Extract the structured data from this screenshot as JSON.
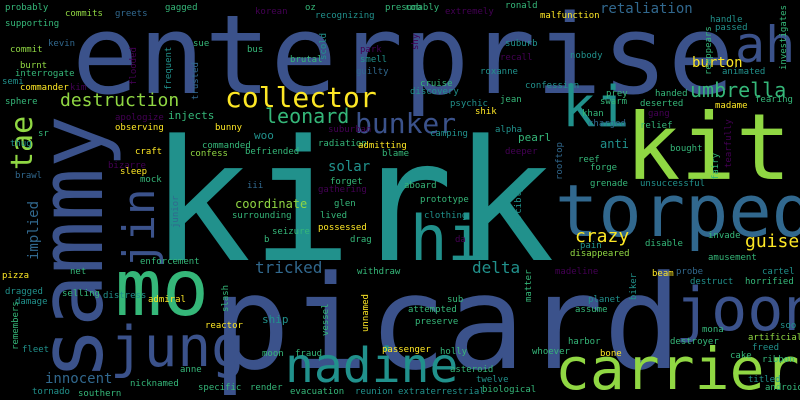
{
  "background": "#000000",
  "palette": {
    "purple": "#440154",
    "indigo": "#3b528b",
    "blue": "#31688e",
    "teal": "#21918c",
    "green": "#35b779",
    "lime": "#90d743",
    "yellow": "#fde725"
  },
  "words": [
    "kirk",
    "picard",
    "enterprise",
    "sammy",
    "kit",
    "torpedo",
    "mo",
    "jung",
    "carrier",
    "nadine",
    "ki",
    "joon",
    "ah",
    "hi",
    "collector",
    "tae",
    "jin",
    "bunker",
    "leonard",
    "destruction",
    "umbrella",
    "crazy",
    "tricked",
    "delta",
    "guise",
    "innocent",
    "implied",
    "retaliation",
    "burton",
    "solar",
    "coordinate",
    "supporting",
    "commits",
    "greets",
    "gagged",
    "korean",
    "oz",
    "recognizing",
    "presumably",
    "extremely",
    "ronald",
    "malfunction",
    "handle",
    "passed",
    "investigates",
    "reappears",
    "animated",
    "probably",
    "kevin",
    "commit",
    "burnt",
    "interrogate",
    "commander",
    "semi",
    "thug",
    "sphere",
    "sr",
    "kim",
    "flooded",
    "frequent",
    "trusted",
    "sue",
    "bus",
    "brutal",
    "scold",
    "park",
    "shy",
    "smell",
    "guilty",
    "suburb",
    "recall",
    "roxanne",
    "nobody",
    "cruise",
    "discovery",
    "confession",
    "psychic",
    "jean",
    "shik",
    "prey",
    "handed",
    "deserted",
    "madame",
    "fearing",
    "khan",
    "swarm",
    "charged",
    "relief",
    "bought",
    "anti",
    "gang",
    "fairy",
    "tearfully",
    "apologize",
    "observing",
    "injects",
    "bunny",
    "craft",
    "woo",
    "suburban",
    "radiation",
    "admitting",
    "blame",
    "camping",
    "alpha",
    "pearl",
    "deeper",
    "rooftop",
    "reef",
    "forge",
    "grenade",
    "unsuccessful",
    "confess",
    "commanded",
    "befriended",
    "bizarre",
    "sleep",
    "mock",
    "brawl",
    "iii",
    "glen",
    "forget",
    "gathering",
    "aboard",
    "prototype",
    "clothing",
    "forcibly",
    "junior",
    "surrounding",
    "lived",
    "possessed",
    "drag",
    "seizure",
    "da",
    "invade",
    "disappeared",
    "pain",
    "disable",
    "amusement",
    "cartel",
    "horrified",
    "enforcement",
    "pizza",
    "net",
    "b",
    "withdraw",
    "madeline",
    "biker",
    "probe",
    "destruct",
    "beam",
    "dragged",
    "damage",
    "selling",
    "distress",
    "admiral",
    "slash",
    "ship",
    "vessel",
    "unnamed",
    "attempted",
    "preserve",
    "matter",
    "planet",
    "assume",
    "sub",
    "mona",
    "soo",
    "artificial",
    "freed",
    "ribbon",
    "cake",
    "titled",
    "android",
    "remembers",
    "fleet",
    "reactor",
    "moon",
    "fraud",
    "passenger",
    "holly",
    "harbor",
    "bone",
    "whoever",
    "destroyer",
    "nicknamed",
    "anne",
    "specific",
    "render",
    "southern",
    "tornado",
    "evacuation",
    "reunion",
    "extraterrestrial",
    "asteroid",
    "twelve",
    "biological",
    "rob"
  ]
}
